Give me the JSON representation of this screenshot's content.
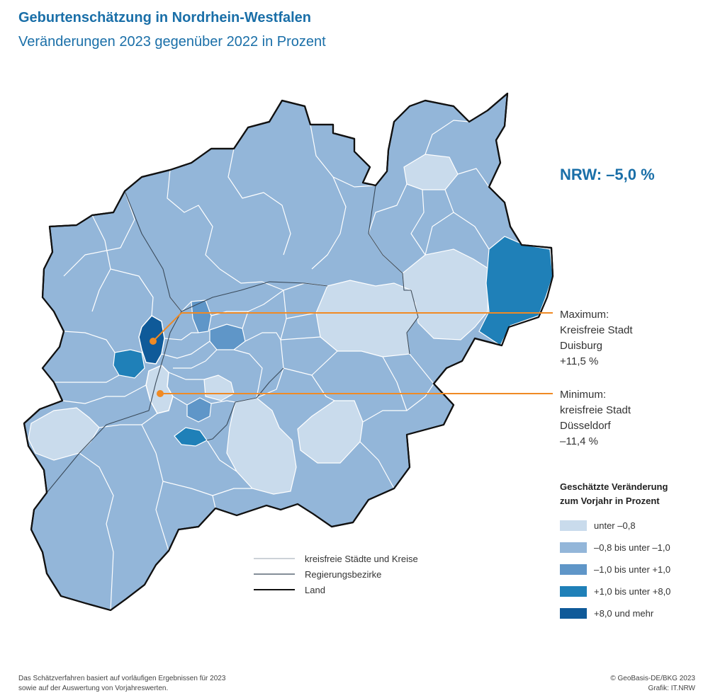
{
  "header": {
    "title": "Geburtenschätzung in Nordrhein-Westfalen",
    "subtitle": "Veränderungen 2023 gegenüber 2022 in Prozent"
  },
  "summary": {
    "nrw_total": "NRW: –5,0 %"
  },
  "callouts": {
    "maximum": {
      "lines": [
        "Maximum:",
        "Kreisfreie Stadt",
        "Duisburg",
        " +11,5 %"
      ]
    },
    "minimum": {
      "lines": [
        "Minimum:",
        "kreisfreie Stadt",
        "Düsseldorf",
        "–11,4 %"
      ]
    }
  },
  "legend": {
    "title_line1": "Geschätzte Veränderung",
    "title_line2": "zum Vorjahr in Prozent",
    "classes": [
      {
        "label": "unter –0,8",
        "color": "#c9dbec"
      },
      {
        "label": "–0,8 bis unter –1,0",
        "color": "#93b6d9"
      },
      {
        "label": "–1,0 bis unter +1,0",
        "color": "#5f96c8"
      },
      {
        "label": "+1,0 bis unter +8,0",
        "color": "#1f80b8"
      },
      {
        "label": "+8,0 und mehr",
        "color": "#0f5a99"
      }
    ]
  },
  "boundary_legend": [
    {
      "label": "kreisfreie Städte und Kreise"
    },
    {
      "label": "Regierungsbezirke"
    },
    {
      "label": "Land"
    }
  ],
  "footer": {
    "note_line1": "Das Schätzverfahren basiert auf vorläufigen Ergebnissen für 2023",
    "note_line2": "sowie auf der Auswertung von Vorjahreswerten.",
    "credit_line1": "© GeoBasis-DE/BKG 2023",
    "credit_line2": "Grafik: IT.NRW"
  },
  "colors": {
    "accent": "#1a6fa8",
    "leader_line": "#f08a24",
    "border_state": "#111111",
    "border_district": "#3a4a5a",
    "border_county": "#ffffff"
  }
}
